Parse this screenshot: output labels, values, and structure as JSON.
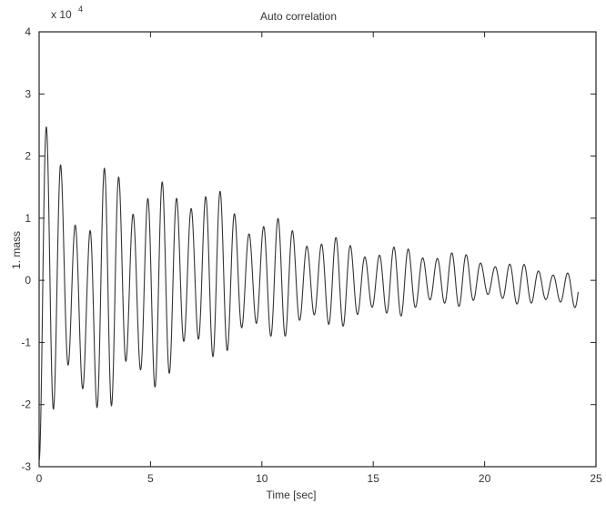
{
  "chart_data": {
    "type": "line",
    "title": "Auto correlation",
    "xlabel": "Time [sec]",
    "ylabel": "1. mass",
    "y_exponent_label": "x 10",
    "y_exponent_power": "4",
    "xlim": [
      0,
      25
    ],
    "ylim": [
      -30000,
      40000
    ],
    "xticks": [
      0,
      5,
      10,
      15,
      20,
      25
    ],
    "xtick_labels": [
      "0",
      "5",
      "10",
      "15",
      "20",
      "25"
    ],
    "yticks": [
      -30000,
      -20000,
      -10000,
      0,
      10000,
      20000,
      30000,
      40000
    ],
    "ytick_labels": [
      "-3",
      "-2",
      "-1",
      "0",
      "1",
      "2",
      "3",
      "4"
    ],
    "grid": false,
    "line_color": "#333333",
    "signal": {
      "x_start": 0,
      "x_end": 24.2,
      "dominant_period": 0.65,
      "peak_values": [
        {
          "x": 0.95,
          "y": 26000
        },
        {
          "x": 1.55,
          "y": 15500
        },
        {
          "x": 2.2,
          "y": 8000
        },
        {
          "x": 3.2,
          "y": 22500
        },
        {
          "x": 3.8,
          "y": 22500
        },
        {
          "x": 4.4,
          "y": 14500
        },
        {
          "x": 6.7,
          "y": 17500
        },
        {
          "x": 9.4,
          "y": 11500
        },
        {
          "x": 14.2,
          "y": 6000
        },
        {
          "x": 18.1,
          "y": 5000
        },
        {
          "x": 21.0,
          "y": 3000
        },
        {
          "x": 23.9,
          "y": 1500
        }
      ],
      "trough_values": [
        {
          "x": 0.1,
          "y": -29000
        },
        {
          "x": 1.2,
          "y": -21000
        },
        {
          "x": 2.8,
          "y": -20500
        },
        {
          "x": 3.4,
          "y": -24000
        },
        {
          "x": 4.0,
          "y": -19500
        },
        {
          "x": 6.1,
          "y": -16000
        },
        {
          "x": 7.3,
          "y": -13500
        },
        {
          "x": 10.0,
          "y": -10000
        },
        {
          "x": 15.0,
          "y": -6500
        },
        {
          "x": 20.0,
          "y": -3500
        },
        {
          "x": 24.2,
          "y": -4500
        }
      ]
    }
  }
}
